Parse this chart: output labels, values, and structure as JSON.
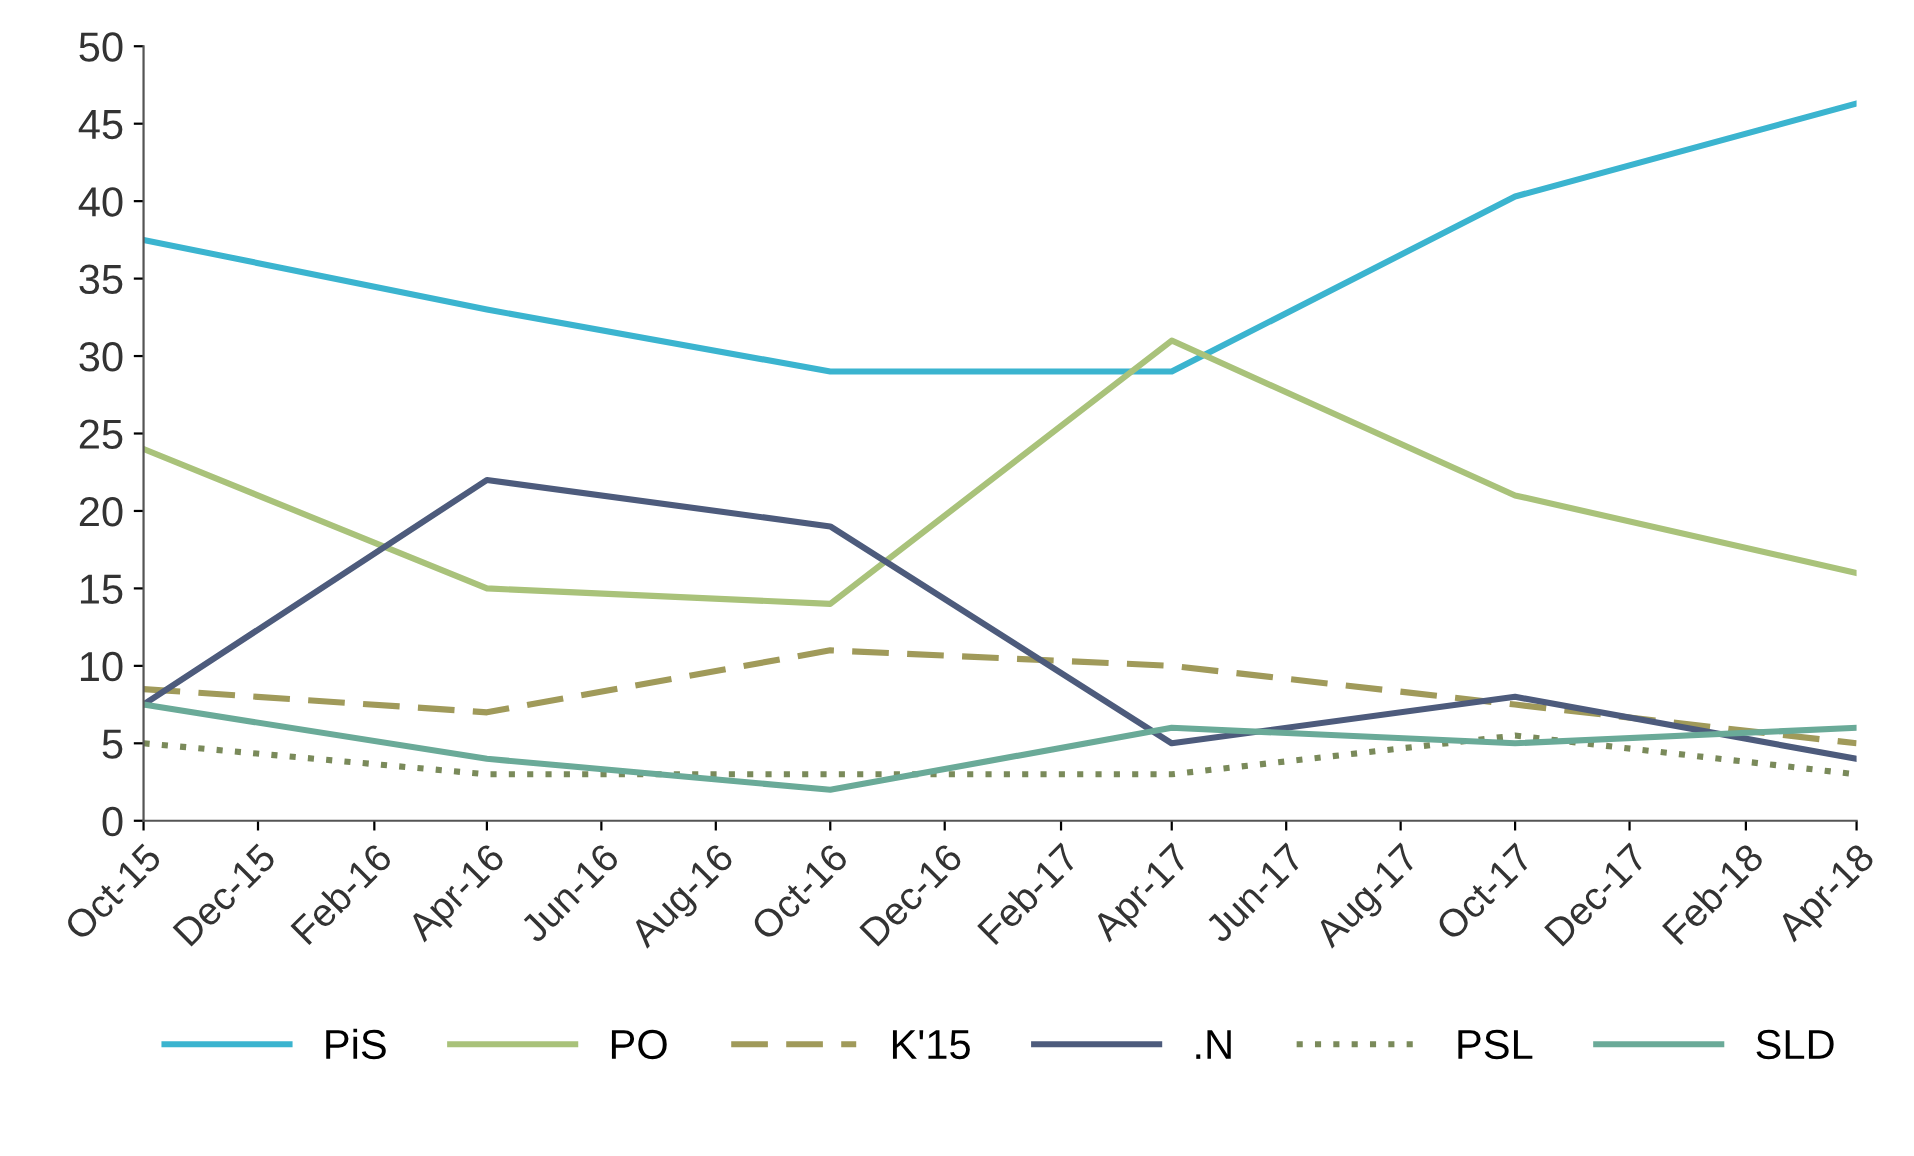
{
  "chart_data": {
    "type": "line",
    "x": [
      "2015-10",
      "2016-04",
      "2016-10",
      "2017-04",
      "2017-10",
      "2018-04"
    ],
    "xlim": [
      "2015-10",
      "2018-04"
    ],
    "xticks": [
      {
        "value": "2015-10",
        "label": "Oct-15"
      },
      {
        "value": "2015-12",
        "label": "Dec-15"
      },
      {
        "value": "2016-02",
        "label": "Feb-16"
      },
      {
        "value": "2016-04",
        "label": "Apr-16"
      },
      {
        "value": "2016-06",
        "label": "Jun-16"
      },
      {
        "value": "2016-08",
        "label": "Aug-16"
      },
      {
        "value": "2016-10",
        "label": "Oct-16"
      },
      {
        "value": "2016-12",
        "label": "Dec-16"
      },
      {
        "value": "2017-02",
        "label": "Feb-17"
      },
      {
        "value": "2017-04",
        "label": "Apr-17"
      },
      {
        "value": "2017-06",
        "label": "Jun-17"
      },
      {
        "value": "2017-08",
        "label": "Aug-17"
      },
      {
        "value": "2017-10",
        "label": "Oct-17"
      },
      {
        "value": "2017-12",
        "label": "Dec-17"
      },
      {
        "value": "2018-02",
        "label": "Feb-18"
      },
      {
        "value": "2018-04",
        "label": "Apr-18"
      }
    ],
    "ylim": [
      0,
      50
    ],
    "yticks": [
      0,
      5,
      10,
      15,
      20,
      25,
      30,
      35,
      40,
      45,
      50
    ],
    "grid": false,
    "legend": "bottom",
    "marker": "none",
    "series": [
      {
        "name": "PiS",
        "color": "#3bb4cf",
        "values": [
          37.5,
          33,
          29,
          29,
          40.3,
          46.3
        ]
      },
      {
        "name": "PO",
        "color": "#a9c27a",
        "values": [
          24,
          15,
          14,
          31,
          21,
          16
        ]
      },
      {
        "name": "K'15",
        "color": "#a09a5a",
        "line_style": "dashed",
        "values": [
          8.5,
          7,
          11,
          10,
          7.5,
          5
        ]
      },
      {
        "name": ".N",
        "color": "#4d5b7c",
        "values": [
          7.5,
          22,
          19,
          5,
          8,
          4
        ]
      },
      {
        "name": "PSL",
        "color": "#7a8a5a",
        "line_style": "dotted",
        "values": [
          5,
          3,
          3,
          3,
          5.5,
          3
        ]
      },
      {
        "name": "SLD",
        "color": "#6aaa98",
        "values": [
          7.5,
          4,
          2,
          6,
          5,
          6
        ]
      }
    ]
  }
}
